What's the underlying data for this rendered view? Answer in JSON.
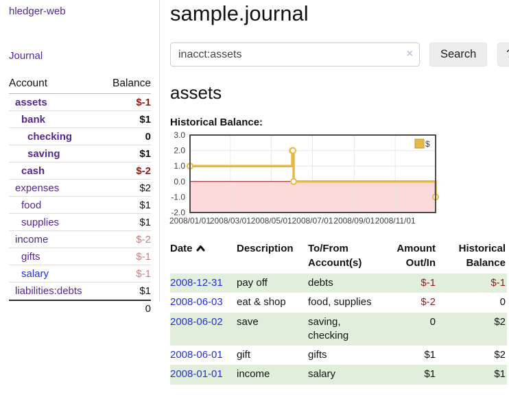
{
  "app": {
    "title": "hledger-web"
  },
  "sidebar": {
    "journal_label": "Journal",
    "table": {
      "headers": {
        "account": "Account",
        "balance": "Balance"
      },
      "rows": [
        {
          "name": "assets",
          "level": 1,
          "bold": true,
          "balance": "$-1",
          "negative": true,
          "blue": false
        },
        {
          "name": "bank",
          "level": 2,
          "bold": true,
          "balance": "$1",
          "negative": false,
          "blue": false
        },
        {
          "name": "checking",
          "level": 3,
          "bold": true,
          "balance": "0",
          "negative": false,
          "blue": false
        },
        {
          "name": "saving",
          "level": 3,
          "bold": true,
          "balance": "$1",
          "negative": false,
          "blue": false
        },
        {
          "name": "cash",
          "level": 2,
          "bold": true,
          "balance": "$-2",
          "negative": true,
          "blue": false
        },
        {
          "name": "expenses",
          "level": 1,
          "bold": false,
          "balance": "$2",
          "negative": false,
          "blue": false
        },
        {
          "name": "food",
          "level": 2,
          "bold": false,
          "balance": "$1",
          "negative": false,
          "blue": false
        },
        {
          "name": "supplies",
          "level": 2,
          "bold": false,
          "balance": "$1",
          "negative": false,
          "blue": false
        },
        {
          "name": "income",
          "level": 1,
          "bold": false,
          "balance": "$-2",
          "negative": true,
          "blue": false
        },
        {
          "name": "gifts",
          "level": 2,
          "bold": false,
          "balance": "$-1",
          "negative": true,
          "blue": false
        },
        {
          "name": "salary",
          "level": 2,
          "bold": false,
          "balance": "$-1",
          "negative": true,
          "blue": true
        },
        {
          "name": "liabilities:debts",
          "level": 1,
          "bold": false,
          "balance": "$1",
          "negative": false,
          "blue": false
        }
      ],
      "total": "0"
    }
  },
  "main": {
    "title": "sample.journal",
    "search": {
      "value": "inacct:assets",
      "clear_icon": "×",
      "button_label": "Search",
      "help_label": "?"
    },
    "account_heading": "assets",
    "chart_label": "Historical Balance:"
  },
  "chart_data": {
    "type": "line",
    "step": true,
    "title": "Historical Balance",
    "series": [
      {
        "name": "$",
        "points": [
          [
            "2008-01-01",
            1
          ],
          [
            "2008-06-01",
            2
          ],
          [
            "2008-06-02",
            2
          ],
          [
            "2008-06-03",
            0
          ],
          [
            "2008-12-31",
            -1
          ]
        ]
      }
    ],
    "x_ticks": [
      "2008/01/01",
      "2008/03/01",
      "2008/05/01",
      "2008/07/01",
      "2008/09/01",
      "2008/11/01"
    ],
    "y_ticks": [
      "3.0",
      "2.0",
      "1.0",
      "0.0",
      "-1.0",
      "-2.0"
    ],
    "ylim": [
      -2,
      3
    ],
    "xlim": [
      "2008-01-01",
      "2008-12-31"
    ],
    "grid": true,
    "legend": {
      "label": "$",
      "position": "top-right"
    },
    "colors": {
      "line": "#e6ba42",
      "legend_border": "#bd9930",
      "marker_fill": "#ffffff",
      "negative_region": "#fbd9d9",
      "zero_line": "#8b1010",
      "grid": "#e6e6e6",
      "border": "#4a4a4a"
    }
  },
  "register": {
    "headers": {
      "date": "Date",
      "description": "Description",
      "accounts": "To/From Account(s)",
      "amount": "Amount Out/In",
      "balance": "Historical Balance"
    },
    "sort": {
      "column": "date",
      "direction": "ascending"
    },
    "rows": [
      {
        "date": "2008-12-31",
        "description": "pay off",
        "accounts": "debts",
        "amount": "$-1",
        "amount_negative": true,
        "balance": "$-1",
        "balance_negative": true
      },
      {
        "date": "2008-06-03",
        "description": "eat & shop",
        "accounts": "food, supplies",
        "amount": "$-2",
        "amount_negative": true,
        "balance": "0",
        "balance_negative": false
      },
      {
        "date": "2008-06-02",
        "description": "save",
        "accounts": "saving, checking",
        "amount": "0",
        "amount_negative": false,
        "balance": "$2",
        "balance_negative": false
      },
      {
        "date": "2008-06-01",
        "description": "gift",
        "accounts": "gifts",
        "amount": "$1",
        "amount_negative": false,
        "balance": "$2",
        "balance_negative": false
      },
      {
        "date": "2008-01-01",
        "description": "income",
        "accounts": "salary",
        "amount": "$1",
        "amount_negative": false,
        "balance": "$1",
        "balance_negative": false
      }
    ]
  }
}
